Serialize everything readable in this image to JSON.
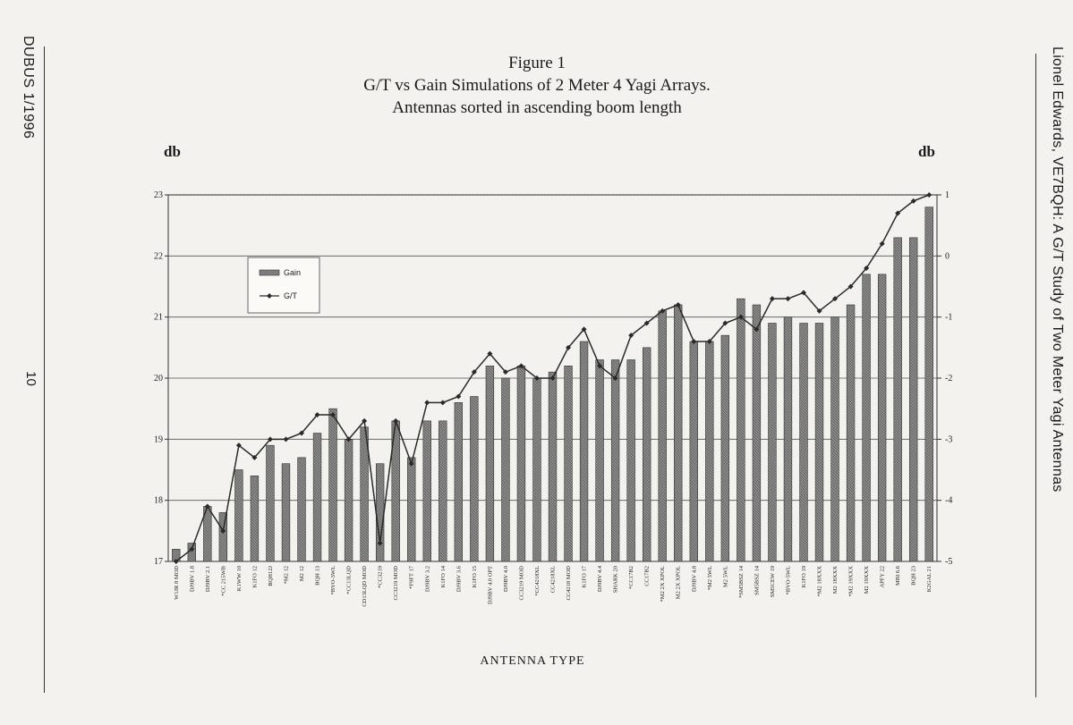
{
  "page": {
    "left_margin_text": "DUBUS 1/1996",
    "page_number": "10",
    "right_margin_text": "Lionel Edwards, VE7BQH: A G/T Study of Two Meter Yagi Antennas"
  },
  "chart_data": {
    "type": "bar",
    "title": "Figure 1",
    "subtitle": [
      "G/T vs Gain Simulations of  2 Meter 4 Yagi Arrays.",
      "Antennas sorted in ascending boom length"
    ],
    "xlabel": "ANTENNA  TYPE",
    "ylabel_left": "db",
    "ylabel_right": "db",
    "ylim_left": [
      17,
      23
    ],
    "ylim_right": [
      -5,
      1
    ],
    "yticks_left": [
      "17",
      "18",
      "19",
      "20",
      "21",
      "22",
      "23"
    ],
    "yticks_right": [
      "-5",
      "-4",
      "-3",
      "-2",
      "-1",
      "0",
      "1"
    ],
    "grid": true,
    "legend": {
      "placement": "upper-left",
      "entries": [
        "Gain",
        "G/T"
      ]
    },
    "categories": [
      "W1JR 8 MOD",
      "DJ9BV 1.8",
      "DJ9BV 2.1",
      "*CC 215WB",
      "K1WW 10",
      "K1FO 12",
      "BQH12J",
      "*M2 12",
      "M2 12",
      "BQH 13",
      "*BVO-3WL",
      "*CC13LQD",
      "CD13LQD MOD",
      "*CC3219",
      "CC3219 MOD",
      "*F9FT 17",
      "DJ9BV 3.2",
      "K1FO 14",
      "DJ9BV 3.6",
      "K1FO 15",
      "DJ9BV 4.0 OPT",
      "DJ9BV 4.0",
      "CC3219 MOD",
      "*CC4218XL",
      "CC4218XL",
      "CC4218 MOD",
      "K1FO 17",
      "DJ9BV 4.4",
      "SHARK 20",
      "*CC17B2",
      "CC17B2",
      "*M2 2X XPOL",
      "M2 2X XPOL",
      "DJ9BV 4.8",
      "*M2 5WL",
      "M2 5WL",
      "*SM5BSZ 14",
      "SM5BSZ 14",
      "SM5CEW 19",
      "*BVO-5WL",
      "K1FO 19",
      "*M2 18XXX",
      "M2 18XXX",
      "*M2 19XXX",
      "M2 19XXX",
      "APFY 22",
      "MBI 6.6",
      "BQH 23",
      "K2GAL 21"
    ],
    "series": [
      {
        "name": "Gain",
        "axis": "left",
        "values": [
          17.2,
          17.3,
          17.9,
          17.8,
          18.5,
          18.4,
          18.9,
          18.6,
          18.7,
          19.1,
          19.5,
          19.0,
          19.2,
          18.6,
          19.3,
          18.7,
          19.3,
          19.3,
          19.6,
          19.7,
          20.2,
          20.0,
          20.2,
          20.0,
          20.1,
          20.2,
          20.6,
          20.3,
          20.3,
          20.3,
          20.5,
          21.1,
          21.2,
          20.6,
          20.6,
          20.7,
          21.3,
          21.2,
          20.9,
          21.0,
          20.9,
          20.9,
          21.0,
          21.2,
          21.7,
          21.7,
          22.3,
          22.3,
          22.8
        ]
      },
      {
        "name": "G/T",
        "axis": "right",
        "values": [
          -5.0,
          -4.8,
          -4.1,
          -4.5,
          -3.1,
          -3.3,
          -3.0,
          -3.0,
          -2.9,
          -2.6,
          -2.6,
          -3.0,
          -2.7,
          -4.7,
          -2.7,
          -3.4,
          -2.4,
          -2.4,
          -2.3,
          -1.9,
          -1.6,
          -1.9,
          -1.8,
          -2.0,
          -2.0,
          -1.5,
          -1.2,
          -1.8,
          -2.0,
          -1.3,
          -1.1,
          -0.9,
          -0.8,
          -1.4,
          -1.4,
          -1.1,
          -1.0,
          -1.2,
          -0.7,
          -0.7,
          -0.6,
          -0.9,
          -0.7,
          -0.5,
          -0.2,
          0.2,
          0.7,
          0.9,
          1.0
        ]
      }
    ],
    "colors": {
      "bar": "#8d8d8d",
      "line": "#2a2a2a",
      "grid": "#555555"
    }
  }
}
